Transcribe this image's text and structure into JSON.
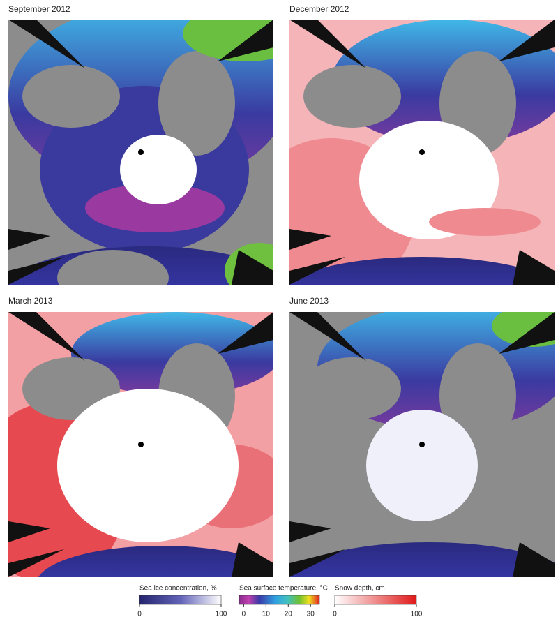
{
  "panels": [
    {
      "title": "September 2012"
    },
    {
      "title": "December 2012"
    },
    {
      "title": "March 2013"
    },
    {
      "title": "June 2013"
    }
  ],
  "legends": [
    {
      "title": "Sea ice concentration, %",
      "lim": [
        0,
        100
      ],
      "ticks": [
        0,
        100
      ]
    },
    {
      "title": "Sea surface temperature, °C",
      "lim": [
        -2,
        34
      ],
      "ticks": [
        0,
        10,
        20,
        30
      ]
    },
    {
      "title": "Snow depth, cm",
      "lim": [
        0,
        100
      ],
      "ticks": [
        0,
        100
      ]
    }
  ]
}
